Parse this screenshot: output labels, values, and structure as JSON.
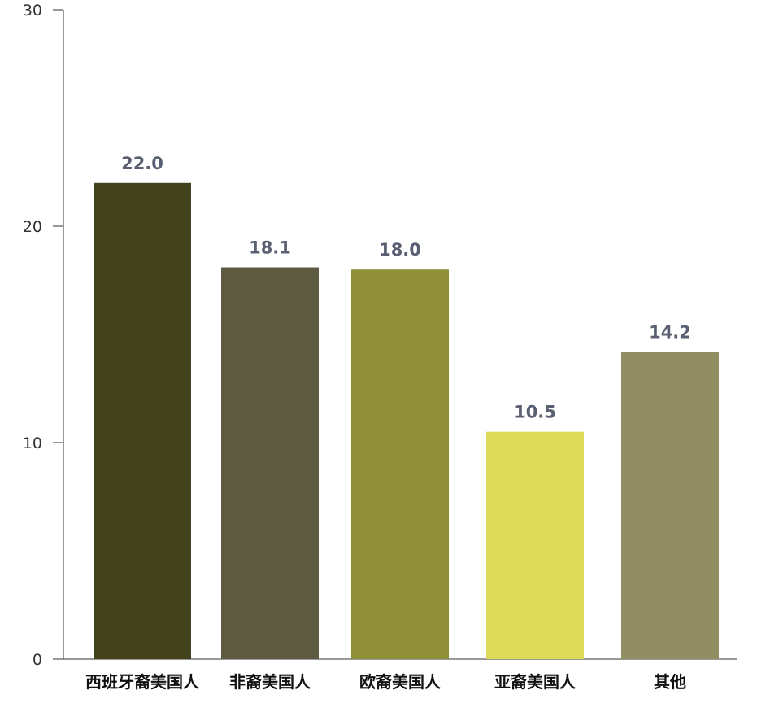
{
  "chart_data": {
    "type": "bar",
    "categories": [
      "西班牙裔美国人",
      "非裔美国人",
      "欧裔美国人",
      "亚裔美国人",
      "其他"
    ],
    "values": [
      22.0,
      18.1,
      18.0,
      10.5,
      14.2
    ],
    "value_labels": [
      "22.0",
      "18.1",
      "18.0",
      "10.5",
      "14.2"
    ],
    "colors": [
      "#42421d",
      "#5c5b42",
      "#8f8f38",
      "#dbdb59",
      "#908e62"
    ],
    "title": "",
    "xlabel": "",
    "ylabel": "",
    "ylim": [
      0,
      30
    ],
    "yticks": [
      0,
      10,
      20,
      30
    ],
    "ytick_labels": [
      "0",
      "10",
      "20",
      "30"
    ],
    "grid": false,
    "legend": "none"
  }
}
